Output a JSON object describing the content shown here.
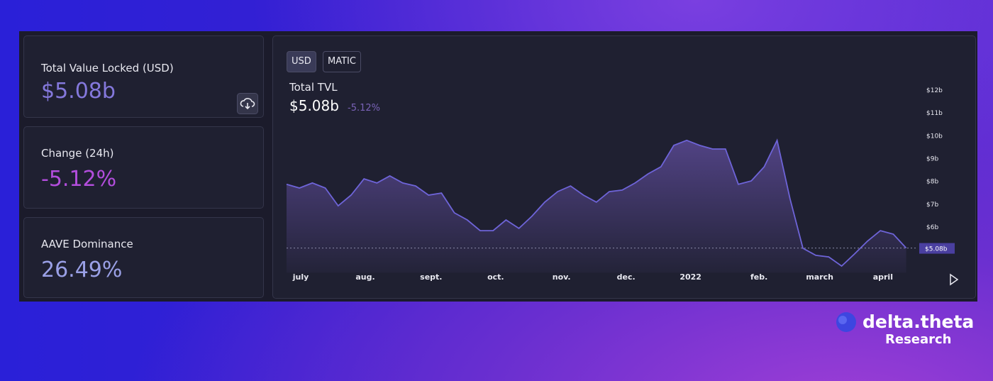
{
  "cards": [
    {
      "label": "Total Value Locked (USD)",
      "value": "$5.08b"
    },
    {
      "label": "Change (24h)",
      "value": "-5.12%"
    },
    {
      "label": "AAVE Dominance",
      "value": "26.49%"
    }
  ],
  "tabs": [
    "USD",
    "MATIC"
  ],
  "chart_data": {
    "type": "area",
    "title": "Total TVL",
    "subtitle": "$5.08b",
    "change": "-5.12%",
    "color": "#6e64d8",
    "values": [
      7.87,
      7.71,
      7.93,
      7.71,
      6.93,
      7.4,
      8.11,
      7.93,
      8.24,
      7.93,
      7.8,
      7.4,
      7.49,
      6.62,
      6.31,
      5.84,
      5.84,
      6.31,
      5.94,
      6.47,
      7.09,
      7.55,
      7.8,
      7.4,
      7.09,
      7.55,
      7.62,
      7.93,
      8.33,
      8.64,
      9.58,
      9.8,
      9.58,
      9.42,
      9.42,
      7.87,
      8.02,
      8.64,
      9.8,
      7.24,
      5.07,
      4.76,
      4.69,
      4.29,
      4.82,
      5.38,
      5.84,
      5.69,
      5.08
    ],
    "xlim": [
      0,
      48
    ],
    "xticks": [
      {
        "value": 1.1,
        "label": "july"
      },
      {
        "value": 6.1,
        "label": "aug."
      },
      {
        "value": 11.2,
        "label": "sept."
      },
      {
        "value": 16.2,
        "label": "oct."
      },
      {
        "value": 21.3,
        "label": "nov."
      },
      {
        "value": 26.3,
        "label": "dec."
      },
      {
        "value": 31.3,
        "label": "2022"
      },
      {
        "value": 36.6,
        "label": "feb."
      },
      {
        "value": 41.3,
        "label": "march"
      },
      {
        "value": 46.2,
        "label": "april"
      }
    ],
    "ylim": [
      4,
      12.2
    ],
    "yticks": [
      {
        "value": 6,
        "label": "$6b"
      },
      {
        "value": 7,
        "label": "$7b"
      },
      {
        "value": 8,
        "label": "$8b"
      },
      {
        "value": 9,
        "label": "$9b"
      },
      {
        "value": 10,
        "label": "$10b"
      },
      {
        "value": 11,
        "label": "$11b"
      },
      {
        "value": 12,
        "label": "$12b"
      }
    ],
    "marker": {
      "value": 5.08,
      "label": "$5.08b"
    }
  },
  "brand": {
    "name": "delta.theta",
    "tagline": "Research"
  }
}
